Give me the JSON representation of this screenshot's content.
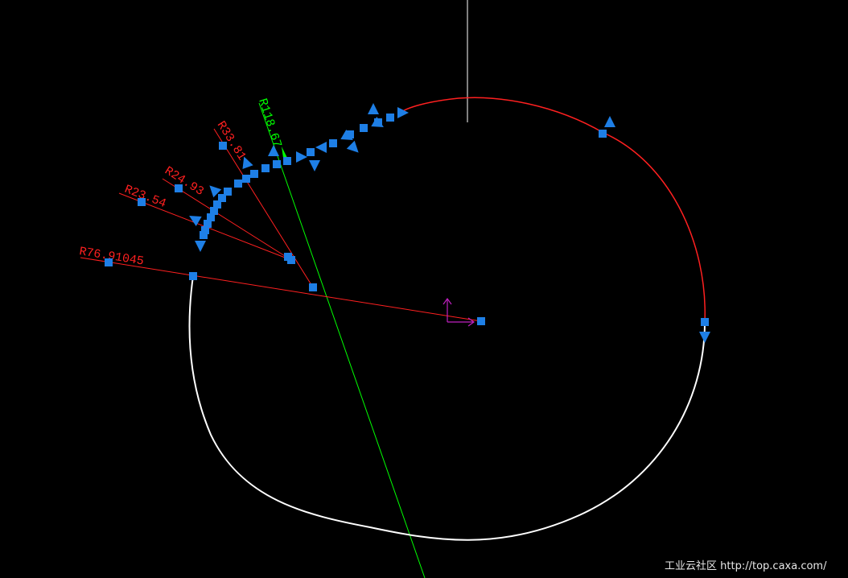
{
  "drawing": {
    "dimensions": [
      {
        "label": "R118.67",
        "color": "#00ff00"
      },
      {
        "label": "R33.81",
        "color": "#ff2020"
      },
      {
        "label": "R24.93",
        "color": "#ff2020"
      },
      {
        "label": "R23.54",
        "color": "#ff2020"
      },
      {
        "label": "R76.91045",
        "color": "#ff2020"
      }
    ],
    "colors": {
      "profile": "#ffffff",
      "selected_arc": "#ff2020",
      "grip": "#1e7fe6",
      "ucs_axes": "#c020c0",
      "construction_line": "#00ff00"
    }
  },
  "watermark": {
    "site_name": "工业云社区",
    "url": "http://top.caxa.com/"
  }
}
